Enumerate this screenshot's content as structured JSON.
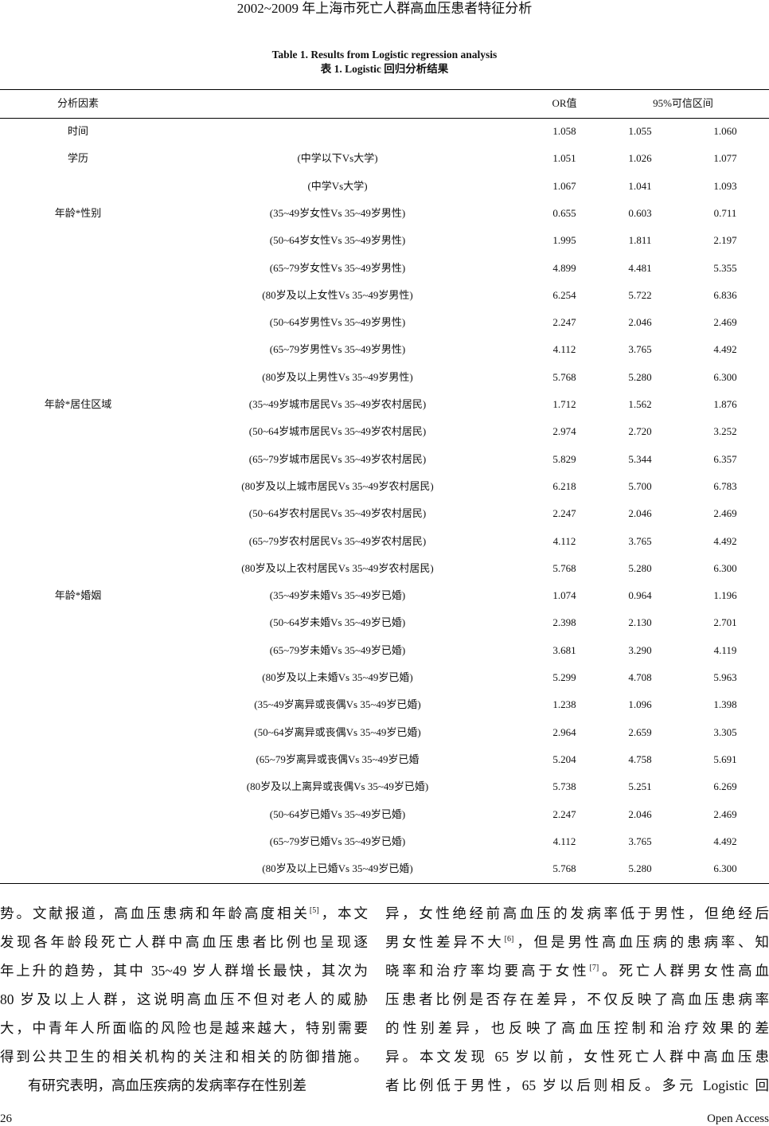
{
  "running_head": "2002~2009 年上海市死亡人群高血压患者特征分析",
  "table": {
    "caption_en": "Table 1. Results from Logistic regression analysis",
    "caption_zh": "表 1. Logistic 回归分析结果",
    "headers": {
      "factor": "分析因素",
      "or": "OR值",
      "ci": "95%可信区间"
    },
    "rows": [
      {
        "factor": "时间",
        "comparison": "",
        "or": "1.058",
        "lower": "1.055",
        "upper": "1.060"
      },
      {
        "factor": "学历",
        "comparison": "(中学以下Vs大学)",
        "or": "1.051",
        "lower": "1.026",
        "upper": "1.077"
      },
      {
        "factor": "",
        "comparison": "(中学Vs大学)",
        "or": "1.067",
        "lower": "1.041",
        "upper": "1.093"
      },
      {
        "factor": "年龄*性别",
        "comparison": "(35~49岁女性Vs 35~49岁男性)",
        "or": "0.655",
        "lower": "0.603",
        "upper": "0.711"
      },
      {
        "factor": "",
        "comparison": "(50~64岁女性Vs 35~49岁男性)",
        "or": "1.995",
        "lower": "1.811",
        "upper": "2.197"
      },
      {
        "factor": "",
        "comparison": "(65~79岁女性Vs 35~49岁男性)",
        "or": "4.899",
        "lower": "4.481",
        "upper": "5.355"
      },
      {
        "factor": "",
        "comparison": "(80岁及以上女性Vs 35~49岁男性)",
        "or": "6.254",
        "lower": "5.722",
        "upper": "6.836"
      },
      {
        "factor": "",
        "comparison": "(50~64岁男性Vs 35~49岁男性)",
        "or": "2.247",
        "lower": "2.046",
        "upper": "2.469"
      },
      {
        "factor": "",
        "comparison": "(65~79岁男性Vs 35~49岁男性)",
        "or": "4.112",
        "lower": "3.765",
        "upper": "4.492"
      },
      {
        "factor": "",
        "comparison": "(80岁及以上男性Vs 35~49岁男性)",
        "or": "5.768",
        "lower": "5.280",
        "upper": "6.300"
      },
      {
        "factor": "年龄*居住区域",
        "comparison": "(35~49岁城市居民Vs 35~49岁农村居民)",
        "or": "1.712",
        "lower": "1.562",
        "upper": "1.876"
      },
      {
        "factor": "",
        "comparison": "(50~64岁城市居民Vs 35~49岁农村居民)",
        "or": "2.974",
        "lower": "2.720",
        "upper": "3.252"
      },
      {
        "factor": "",
        "comparison": "(65~79岁城市居民Vs 35~49岁农村居民)",
        "or": "5.829",
        "lower": "5.344",
        "upper": "6.357"
      },
      {
        "factor": "",
        "comparison": "(80岁及以上城市居民Vs 35~49岁农村居民)",
        "or": "6.218",
        "lower": "5.700",
        "upper": "6.783"
      },
      {
        "factor": "",
        "comparison": "(50~64岁农村居民Vs 35~49岁农村居民)",
        "or": "2.247",
        "lower": "2.046",
        "upper": "2.469"
      },
      {
        "factor": "",
        "comparison": "(65~79岁农村居民Vs 35~49岁农村居民)",
        "or": "4.112",
        "lower": "3.765",
        "upper": "4.492"
      },
      {
        "factor": "",
        "comparison": "(80岁及以上农村居民Vs 35~49岁农村居民)",
        "or": "5.768",
        "lower": "5.280",
        "upper": "6.300"
      },
      {
        "factor": "年龄*婚姻",
        "comparison": "(35~49岁未婚Vs 35~49岁已婚)",
        "or": "1.074",
        "lower": "0.964",
        "upper": "1.196"
      },
      {
        "factor": "",
        "comparison": "(50~64岁未婚Vs 35~49岁已婚)",
        "or": "2.398",
        "lower": "2.130",
        "upper": "2.701"
      },
      {
        "factor": "",
        "comparison": "(65~79岁未婚Vs 35~49岁已婚)",
        "or": "3.681",
        "lower": "3.290",
        "upper": "4.119"
      },
      {
        "factor": "",
        "comparison": "(80岁及以上未婚Vs 35~49岁已婚)",
        "or": "5.299",
        "lower": "4.708",
        "upper": "5.963"
      },
      {
        "factor": "",
        "comparison": "(35~49岁离异或丧偶Vs 35~49岁已婚)",
        "or": "1.238",
        "lower": "1.096",
        "upper": "1.398"
      },
      {
        "factor": "",
        "comparison": "(50~64岁离异或丧偶Vs 35~49岁已婚)",
        "or": "2.964",
        "lower": "2.659",
        "upper": "3.305"
      },
      {
        "factor": "",
        "comparison": "(65~79岁离异或丧偶Vs 35~49岁已婚",
        "or": "5.204",
        "lower": "4.758",
        "upper": "5.691"
      },
      {
        "factor": "",
        "comparison": "(80岁及以上离异或丧偶Vs 35~49岁已婚)",
        "or": "5.738",
        "lower": "5.251",
        "upper": "6.269"
      },
      {
        "factor": "",
        "comparison": "(50~64岁已婚Vs 35~49岁已婚)",
        "or": "2.247",
        "lower": "2.046",
        "upper": "2.469"
      },
      {
        "factor": "",
        "comparison": "(65~79岁已婚Vs 35~49岁已婚)",
        "or": "4.112",
        "lower": "3.765",
        "upper": "4.492"
      },
      {
        "factor": "",
        "comparison": "(80岁及以上已婚Vs 35~49岁已婚)",
        "or": "5.768",
        "lower": "5.280",
        "upper": "6.300"
      }
    ]
  },
  "body": {
    "left": [
      {
        "text": "势。文献报道，高血压患病和年龄高度相关",
        "sup": "[5]",
        "after": "，本文"
      },
      {
        "text": "发现各年龄段死亡人群中高血压患者比例也呈现逐"
      },
      {
        "text": "年上升的趋势，其中 35~49 岁人群增长最快，其次为"
      },
      {
        "text": "80  岁及以上人群，这说明高血压不但对老人的威胁"
      },
      {
        "text": "大，中青年人所面临的风险也是越来越大，特别需要"
      },
      {
        "text": "得到公共卫生的相关机构的关注和相关的防御措施。"
      },
      {
        "text": "有研究表明，高血压疾病的发病率存在性别差",
        "indent": true
      }
    ],
    "right": [
      {
        "text": "异，女性绝经前高血压的发病率低于男性，但绝经后"
      },
      {
        "text": "男女性差异不大",
        "sup": "[6]",
        "after": "，但是男性高血压病的患病率、知"
      },
      {
        "text": "晓率和治疗率均要高于女性",
        "sup": "[7]",
        "after": "。死亡人群男女性高血"
      },
      {
        "text": "压患者比例是否存在差异，不仅反映了高血压患病率"
      },
      {
        "text": "的性别差异，也反映了高血压控制和治疗效果的差"
      },
      {
        "text": "异。本文发现  65  岁以前，女性死亡人群中高血压患"
      },
      {
        "text": "者比例低于男性，65 岁以后则相反。多元 Logistic 回"
      }
    ]
  },
  "footer": {
    "page_number": "26",
    "publisher": "Open Access"
  }
}
